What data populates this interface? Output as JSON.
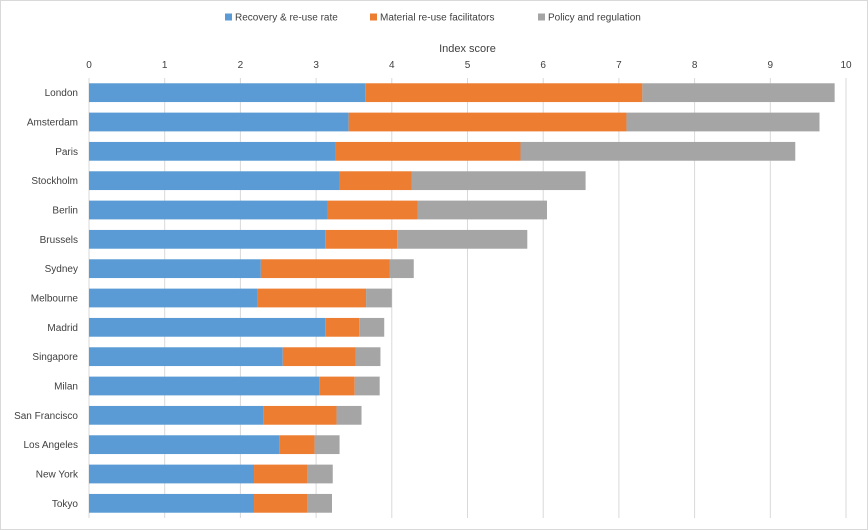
{
  "chart_data": {
    "type": "bar",
    "orientation": "horizontal",
    "stacked": true,
    "xlabel": "Index score",
    "xlim": [
      0,
      10
    ],
    "xticks": [
      0,
      1,
      2,
      3,
      4,
      5,
      6,
      7,
      8,
      9,
      10
    ],
    "grid": true,
    "legend_position": "top",
    "categories": [
      "London",
      "Amsterdam",
      "Paris",
      "Stockholm",
      "Berlin",
      "Brussels",
      "Sydney",
      "Melbourne",
      "Madrid",
      "Singapore",
      "Milan",
      "San Francisco",
      "Los Angeles",
      "New York",
      "Tokyo"
    ],
    "series": [
      {
        "name": "Recovery & re-use rate",
        "color": "#5b9bd5",
        "values": [
          3.65,
          3.43,
          3.25,
          3.31,
          3.15,
          3.12,
          2.27,
          2.22,
          3.12,
          2.56,
          3.04,
          2.3,
          2.52,
          2.18,
          2.18
        ]
      },
      {
        "name": "Material re-use facilitators",
        "color": "#ed7d31",
        "values": [
          3.66,
          3.67,
          2.45,
          0.95,
          1.19,
          0.95,
          1.7,
          1.44,
          0.45,
          0.96,
          0.47,
          0.97,
          0.46,
          0.71,
          0.7
        ]
      },
      {
        "name": "Policy and regulation",
        "color": "#a5a5a5",
        "values": [
          2.54,
          2.55,
          3.63,
          2.3,
          1.71,
          1.72,
          0.32,
          0.34,
          0.33,
          0.33,
          0.33,
          0.33,
          0.33,
          0.33,
          0.33
        ]
      }
    ]
  }
}
